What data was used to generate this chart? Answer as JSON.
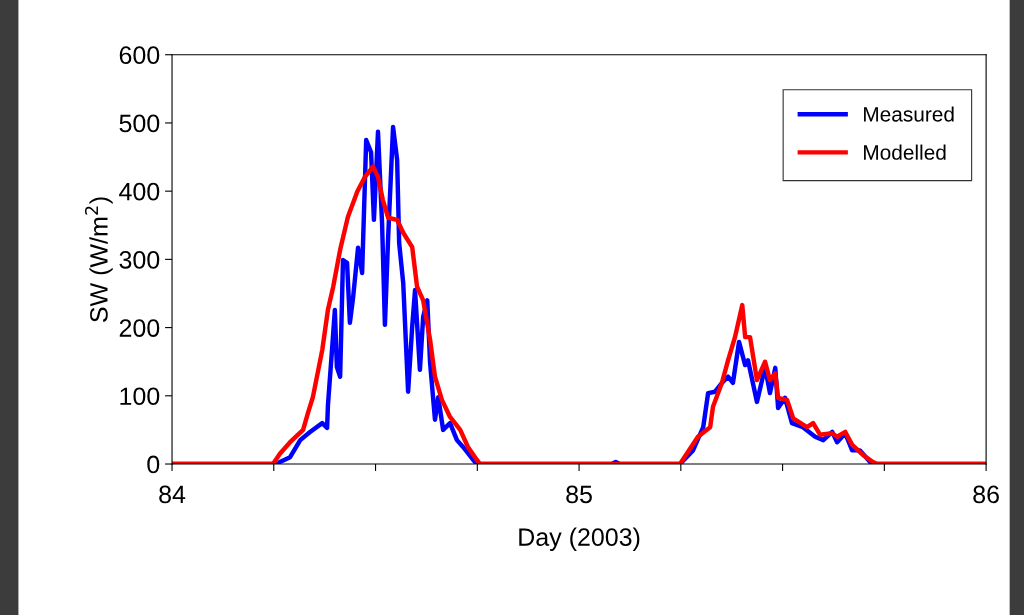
{
  "chart_data": {
    "type": "line",
    "xlabel": "Day (2003)",
    "ylabel": "SW (W/m$^{2}$)",
    "xlim": [
      84,
      86
    ],
    "xticks": [
      84,
      {
        "value": 84.25,
        "label": null
      },
      {
        "value": 84.5,
        "label": null
      },
      {
        "value": 84.75,
        "label": null
      },
      85,
      {
        "value": 85.25,
        "label": null
      },
      {
        "value": 85.5,
        "label": null
      },
      {
        "value": 85.75,
        "label": null
      },
      86
    ],
    "ylim": [
      0,
      600
    ],
    "yticks": [
      0,
      100,
      200,
      300,
      400,
      500,
      600
    ],
    "grid": false,
    "legend": "top right",
    "line_style": "solid",
    "marker": "none",
    "series": [
      {
        "name": "Measured",
        "color": "#0000ff",
        "x": [
          84.0,
          84.26,
          84.265,
          84.29,
          84.315,
          84.339,
          84.369,
          84.381,
          84.383,
          84.393,
          84.4,
          84.405,
          84.413,
          84.42,
          84.43,
          84.437,
          84.445,
          84.457,
          84.467,
          84.477,
          84.489,
          84.496,
          84.506,
          84.516,
          84.523,
          84.531,
          84.543,
          84.553,
          84.558,
          84.568,
          84.58,
          84.59,
          84.597,
          84.609,
          84.617,
          84.627,
          84.634,
          84.646,
          84.654,
          84.666,
          84.683,
          84.7,
          84.715,
          84.74,
          84.749,
          85.08,
          85.09,
          85.1,
          85.248,
          85.28,
          85.305,
          85.317,
          85.334,
          85.351,
          85.366,
          85.378,
          85.393,
          85.408,
          85.415,
          85.437,
          85.457,
          85.469,
          85.482,
          85.489,
          85.506,
          85.523,
          85.55,
          85.58,
          85.6,
          85.622,
          85.634,
          85.654,
          85.671,
          85.69,
          85.715,
          85.732,
          86.0
        ],
        "values": [
          0,
          0,
          3,
          10,
          35,
          47,
          60,
          53,
          86,
          167,
          226,
          142,
          128,
          299,
          295,
          207,
          245,
          317,
          280,
          475,
          457,
          358,
          487,
          353,
          204,
          333,
          494,
          446,
          324,
          265,
          106,
          201,
          255,
          138,
          216,
          240,
          148,
          65,
          98,
          50,
          60,
          35,
          25,
          6,
          0,
          0,
          3,
          0,
          0,
          20,
          54,
          104,
          106,
          119,
          128,
          119,
          179,
          145,
          152,
          91,
          142,
          104,
          141,
          82,
          97,
          60,
          54,
          40,
          35,
          47,
          32,
          45,
          20,
          20,
          3,
          0,
          0
        ]
      },
      {
        "name": "Modelled",
        "color": "#ff0000",
        "x": [
          84.0,
          84.248,
          84.265,
          84.29,
          84.322,
          84.334,
          84.346,
          84.369,
          84.383,
          84.396,
          84.413,
          84.432,
          84.455,
          84.474,
          84.494,
          84.506,
          84.518,
          84.531,
          84.553,
          84.568,
          84.59,
          84.602,
          84.617,
          84.634,
          84.646,
          84.663,
          84.683,
          84.708,
          84.727,
          84.749,
          84.757,
          85.248,
          85.292,
          85.322,
          85.329,
          85.351,
          85.366,
          85.383,
          85.401,
          85.408,
          85.42,
          85.437,
          85.457,
          85.469,
          85.482,
          85.489,
          85.511,
          85.526,
          85.56,
          85.575,
          85.592,
          85.622,
          85.634,
          85.654,
          85.671,
          85.698,
          85.722,
          85.732,
          86.0
        ],
        "values": [
          0,
          0,
          15,
          32,
          50,
          75,
          98,
          167,
          226,
          260,
          314,
          362,
          399,
          421,
          436,
          421,
          387,
          361,
          358,
          339,
          318,
          260,
          240,
          182,
          128,
          94,
          69,
          50,
          25,
          6,
          0,
          0,
          40,
          54,
          84,
          119,
          152,
          186,
          233,
          186,
          186,
          123,
          150,
          123,
          133,
          97,
          94,
          67,
          54,
          60,
          43,
          45,
          40,
          47,
          28,
          13,
          3,
          0,
          0
        ]
      }
    ]
  }
}
